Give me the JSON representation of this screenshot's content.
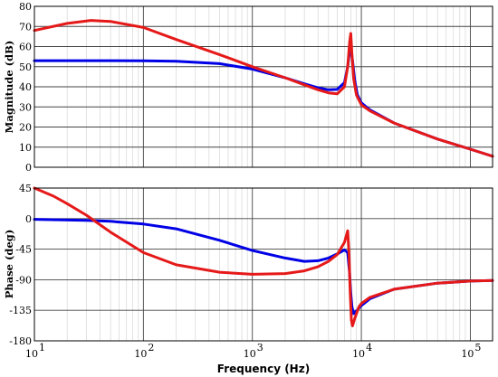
{
  "chart_data": [
    {
      "type": "line",
      "panel": "magnitude",
      "ylabel": "Magnitude (dB)",
      "x_scale": "log",
      "xlim": [
        10,
        160000
      ],
      "ylim": [
        0,
        80
      ],
      "yticks": [
        "0",
        "10",
        "20",
        "30",
        "40",
        "50",
        "60",
        "70",
        "80"
      ],
      "grid": true,
      "series": [
        {
          "color": "#0000e6",
          "x": [
            10,
            50,
            100,
            200,
            500,
            1000,
            2000,
            3000,
            4000,
            5000,
            6000,
            7000,
            7500,
            7800,
            8000,
            8300,
            8700,
            9200,
            10000,
            12000,
            20000,
            50000,
            100000,
            160000
          ],
          "y": [
            53,
            53,
            52.9,
            52.7,
            51.5,
            48.8,
            44.5,
            41.5,
            39.5,
            38.5,
            38.7,
            42,
            50,
            58,
            60,
            53,
            43,
            36,
            32,
            28.5,
            22,
            14,
            9,
            5.5
          ]
        },
        {
          "color": "#e61919",
          "x": [
            10,
            20,
            33,
            50,
            100,
            200,
            500,
            1000,
            2000,
            3000,
            4000,
            5000,
            6000,
            7000,
            7500,
            7800,
            8000,
            8200,
            8500,
            9000,
            10000,
            12000,
            20000,
            50000,
            100000,
            160000
          ],
          "y": [
            68,
            71.5,
            73,
            72.5,
            69.5,
            63.5,
            56,
            50,
            44.5,
            41,
            38.5,
            37,
            36.5,
            40,
            50,
            62,
            66.5,
            56,
            44,
            36,
            31,
            28,
            22,
            14,
            9,
            5.5
          ]
        }
      ]
    },
    {
      "type": "line",
      "panel": "phase",
      "ylabel": "Phase (deg)",
      "xlabel": "Frequency  (Hz)",
      "x_scale": "log",
      "xlim": [
        10,
        160000
      ],
      "ylim": [
        -180,
        45
      ],
      "yticks": [
        "45",
        "0",
        "-45",
        "-90",
        "-135",
        "-180"
      ],
      "xticks": [
        {
          "value": 10,
          "base": "10",
          "exp": "1"
        },
        {
          "value": 100,
          "base": "10",
          "exp": "2"
        },
        {
          "value": 1000,
          "base": "10",
          "exp": "3"
        },
        {
          "value": 10000,
          "base": "10",
          "exp": "4"
        },
        {
          "value": 100000,
          "base": "10",
          "exp": "5"
        }
      ],
      "grid": true,
      "series": [
        {
          "color": "#0000e6",
          "x": [
            10,
            30,
            50,
            100,
            200,
            500,
            1000,
            2000,
            3000,
            4000,
            5000,
            6000,
            7000,
            7500,
            7800,
            8000,
            8200,
            8500,
            9000,
            10000,
            12000,
            20000,
            50000,
            100000,
            160000
          ],
          "y": [
            -1,
            -2.5,
            -4,
            -8,
            -15,
            -32,
            -47,
            -58,
            -63,
            -62,
            -58,
            -52,
            -46,
            -50,
            -80,
            -110,
            -130,
            -140,
            -136,
            -128,
            -118,
            -104,
            -95,
            -92,
            -91
          ]
        },
        {
          "color": "#e61919",
          "x": [
            10,
            15,
            20,
            30,
            50,
            100,
            200,
            500,
            1000,
            2000,
            3000,
            4000,
            5000,
            6000,
            7000,
            7500,
            7700,
            7900,
            8100,
            8300,
            8700,
            9500,
            10000,
            12000,
            20000,
            50000,
            100000,
            160000
          ],
          "y": [
            45,
            33,
            22,
            5,
            -20,
            -50,
            -68,
            -79,
            -82,
            -81,
            -77,
            -71,
            -63,
            -53,
            -35,
            -18,
            -50,
            -110,
            -150,
            -158,
            -147,
            -130,
            -125,
            -116,
            -104,
            -95,
            -92,
            -91
          ]
        }
      ]
    }
  ]
}
